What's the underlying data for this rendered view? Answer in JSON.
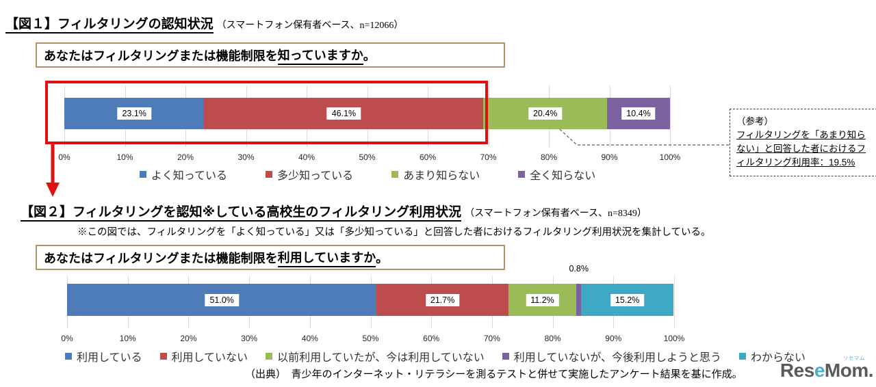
{
  "colors": {
    "annotation_red": "#e01010",
    "question_box_border": "#b09468",
    "gridline": "#d9d9d9",
    "legend_text": "#333333",
    "logo_gray": "#4d4d4d",
    "logo_teal": "#3ea9c5"
  },
  "fig1": {
    "title": "【図１】フィルタリングの認知状況",
    "subtitle": "（スマートフォン保有者ベース、n=12066）",
    "question": {
      "pre": "あなたはフィルタリングまたは機能制限を",
      "emph": "知っていますか",
      "post": "。"
    },
    "ref_note": {
      "heading": "（参考）",
      "body": "フィルタリングを「あまり知らない」と回答した者におけるフィルタリング利用率：19.5%"
    }
  },
  "fig2": {
    "title": "【図２】フィルタリングを認知※している高校生のフィルタリング利用状況",
    "subtitle": "（スマートフォン保有者ベース、n=8349）",
    "note": "※この図では、フィルタリングを「よく知っている」又は「多少知っている」と回答した者におけるフィルタリング利用状況を集計している。",
    "question": {
      "pre": "あなたはフィルタリングまたは機能制限を",
      "emph": "利用していますか",
      "post": "。"
    }
  },
  "footer": {
    "source": "（出典）　青少年のインターネット・リテラシーを測るテストと併せて実施したアンケート結果を基に作成。"
  },
  "logo": {
    "p1": "R",
    "p2": "es",
    "p3": "e",
    "p4": "Mom.",
    "ruby": "リセマム"
  },
  "chart_data": [
    {
      "type": "bar",
      "stacked": true,
      "orientation": "horizontal",
      "title": "フィルタリングの認知状況（スマートフォン保有者ベース、n=12066）",
      "unit": "%",
      "xlim": [
        0,
        100
      ],
      "x_ticks": [
        "0%",
        "10%",
        "20%",
        "30%",
        "40%",
        "50%",
        "60%",
        "70%",
        "80%",
        "90%",
        "100%"
      ],
      "grid": true,
      "legend_position": "bottom",
      "series": [
        {
          "name": "よく知っている",
          "value": 23.1,
          "color": "#4e7cbb"
        },
        {
          "name": "多少知っている",
          "value": 46.1,
          "color": "#bf4c4c"
        },
        {
          "name": "あまり知らない",
          "value": 20.4,
          "color": "#9bba58"
        },
        {
          "name": "全く知らない",
          "value": 10.4,
          "color": "#7c62a1"
        }
      ]
    },
    {
      "type": "bar",
      "stacked": true,
      "orientation": "horizontal",
      "title": "フィルタリングを認知している高校生のフィルタリング利用状況（スマートフォン保有者ベース、n=8349）",
      "unit": "%",
      "xlim": [
        0,
        100
      ],
      "x_ticks": [
        "0%",
        "10%",
        "20%",
        "30%",
        "40%",
        "50%",
        "60%",
        "70%",
        "80%",
        "90%",
        "100%"
      ],
      "grid": true,
      "legend_position": "bottom",
      "series": [
        {
          "name": "利用している",
          "value": 51.0,
          "color": "#4e7cbb"
        },
        {
          "name": "利用していない",
          "value": 21.7,
          "color": "#bf4c4c"
        },
        {
          "name": "以前利用していたが、今は利用していない",
          "value": 11.2,
          "color": "#9bba58"
        },
        {
          "name": "利用していないが、今後利用しようと思う",
          "value": 0.8,
          "color": "#7c62a1",
          "label_outside": true
        },
        {
          "name": "わからない",
          "value": 15.2,
          "color": "#3ea9c5"
        }
      ]
    }
  ]
}
